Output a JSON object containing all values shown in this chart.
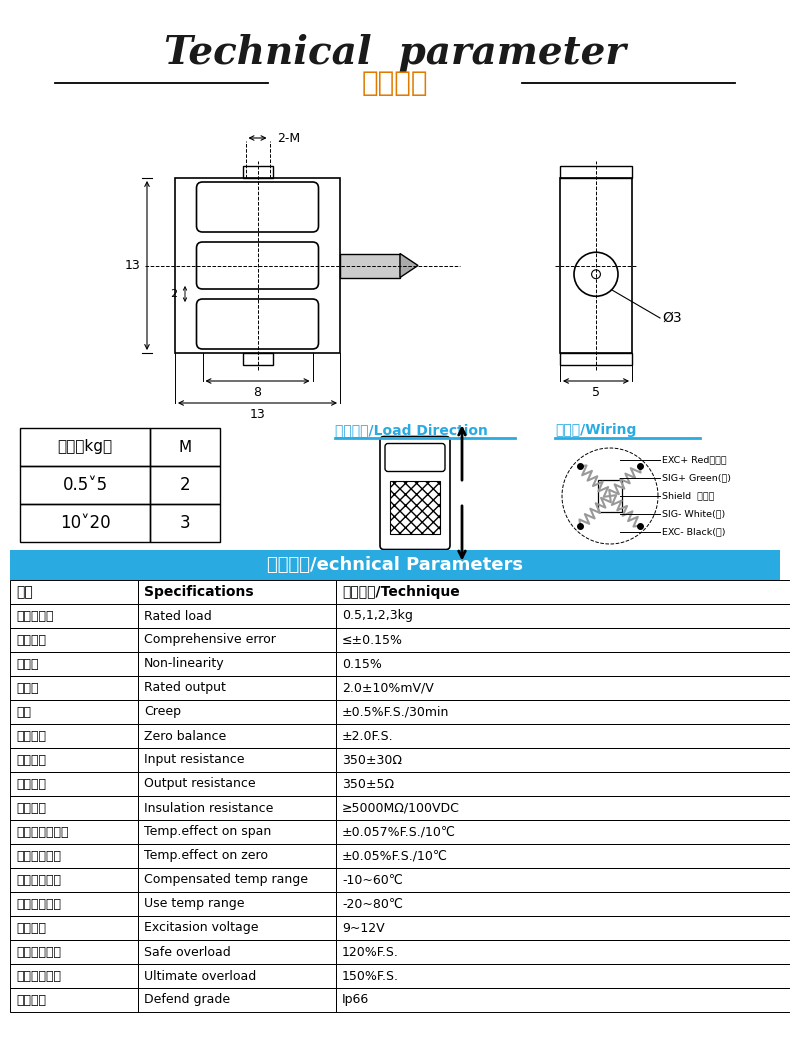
{
  "title_en": "Technical  parameter",
  "title_cn": "技术参数",
  "title_en_color": "#1a1a1a",
  "title_cn_color": "#e07b00",
  "blue_color": "#29abe2",
  "table_header": [
    "参数",
    "Specifications",
    "技术指标/Technique"
  ],
  "table_data": [
    [
      "传感器量程",
      "Rated load",
      "0.5,1,2,3kg"
    ],
    [
      "综合误差",
      "Comprehensive error",
      "≤±0.15%"
    ],
    [
      "非线性",
      "Non-linearity",
      "0.15%"
    ],
    [
      "灵敏度",
      "Rated output",
      "2.0±10%mV/V"
    ],
    [
      "蛠变",
      "Creep",
      "±0.5%F.S./30min"
    ],
    [
      "零点输出",
      "Zero balance",
      "±2.0F.S."
    ],
    [
      "输入阻抗",
      "Input resistance",
      "350±30Ω"
    ],
    [
      "输出阻抗",
      "Output resistance",
      "350±5Ω"
    ],
    [
      "绝缘电阵",
      "Insulation resistance",
      "≥5000MΩ/100VDC"
    ],
    [
      "灵敏度温度影响",
      "Temp.effect on span",
      "±0.057%F.S./10℃"
    ],
    [
      "零点温度影响",
      "Temp.effect on zero",
      "±0.05%F.S./10℃"
    ],
    [
      "温度补偶范围",
      "Compensated temp range",
      "-10~60℃"
    ],
    [
      "使用温度范围",
      "Use temp range",
      "-20~80℃"
    ],
    [
      "激励电压",
      "Excitasion voltage",
      "9~12V"
    ],
    [
      "安全过载范围",
      "Safe overload",
      "120%F.S."
    ],
    [
      "极限过载范围",
      "Ultimate overload",
      "150%F.S."
    ],
    [
      "防护等级",
      "Defend grade",
      "Ip66"
    ]
  ],
  "range_table_header": [
    "量程（kg）",
    "M"
  ],
  "range_table_data": [
    [
      "0.5˅5",
      "2"
    ],
    [
      "10˅20",
      "3"
    ]
  ],
  "load_dir_label": "受力方式/Load Direction",
  "wiring_label": "接线图/Wiring",
  "wiring_lines": [
    "EXC+ Red（红）",
    "SIG+ Green(绿)",
    "Shield  屏蔽线",
    "SIG- White(白)",
    "EXC- Black(黑)"
  ],
  "dim_2M": "2-M",
  "dim_13v": "13",
  "dim_2h": "2",
  "dim_8": "8",
  "dim_13h": "13",
  "dim_phi3": "Ø3",
  "dim_5": "5"
}
